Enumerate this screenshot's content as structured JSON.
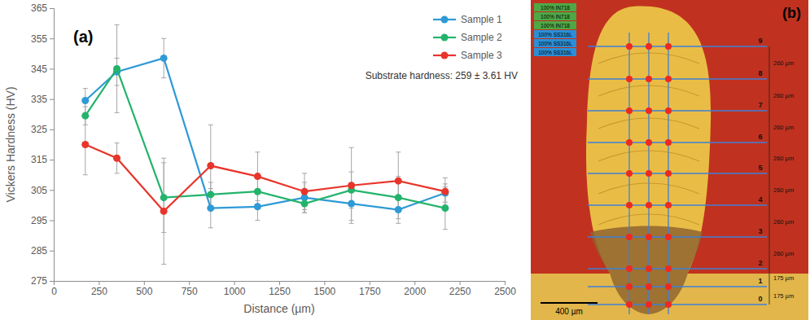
{
  "chart_data": {
    "type": "line",
    "xlabel": "Distance (µm)",
    "ylabel": "Vickers Hardness (HV)",
    "annotations": [
      "(a)",
      "Substrate hardness: 259 ± 3.61 HV"
    ],
    "x": [
      175,
      350,
      610,
      870,
      1130,
      1390,
      1650,
      1910,
      2170
    ],
    "xlim": [
      0,
      2500
    ],
    "xticks": [
      0,
      250,
      500,
      750,
      1000,
      1250,
      1500,
      1750,
      2000,
      2250,
      2500
    ],
    "ylim": [
      275,
      365
    ],
    "yticks": [
      275,
      285,
      295,
      305,
      315,
      325,
      335,
      345,
      355,
      365
    ],
    "grid": false,
    "legend": "top-right",
    "series": [
      {
        "name": "Sample 1",
        "color": "#2e9ad6",
        "marker": "circle",
        "values": [
          334.5,
          344,
          348.5,
          299,
          299.5,
          302.5,
          300.5,
          298.5,
          304
        ],
        "errors": [
          4,
          4.5,
          6.5,
          6.5,
          4.5,
          5,
          5.5,
          4.5,
          3
        ]
      },
      {
        "name": "Sample 2",
        "color": "#23b36b",
        "marker": "circle",
        "values": [
          329.5,
          345,
          302.5,
          303.5,
          304.5,
          300.5,
          305,
          302.5,
          299
        ],
        "errors": [
          3,
          14.5,
          11.5,
          4,
          4.5,
          3,
          6,
          7,
          7
        ]
      },
      {
        "name": "Sample 3",
        "color": "#e8352b",
        "marker": "circle",
        "values": [
          320,
          315.5,
          298,
          313,
          309.5,
          304.5,
          306.5,
          308,
          304.5
        ],
        "errors": [
          10,
          5,
          17.5,
          13.5,
          8,
          6,
          12.5,
          9.5,
          4.5
        ]
      }
    ]
  },
  "micrograph": {
    "panel": "(b)",
    "boxes": [
      "100% IN718",
      "100% IN718",
      "100% IN718",
      "100% SS316L",
      "100% SS316L",
      "100% SS316L"
    ],
    "rows": [
      "9",
      "8",
      "7",
      "6",
      "5",
      "4",
      "3",
      "2",
      "1",
      "0"
    ],
    "spacings": [
      "260 µm",
      "260 µm",
      "260 µm",
      "260 µm",
      "260 µm",
      "260 µm",
      "260 µm",
      "175 µm",
      "175 µm"
    ],
    "scale_bar": "400 µm"
  }
}
